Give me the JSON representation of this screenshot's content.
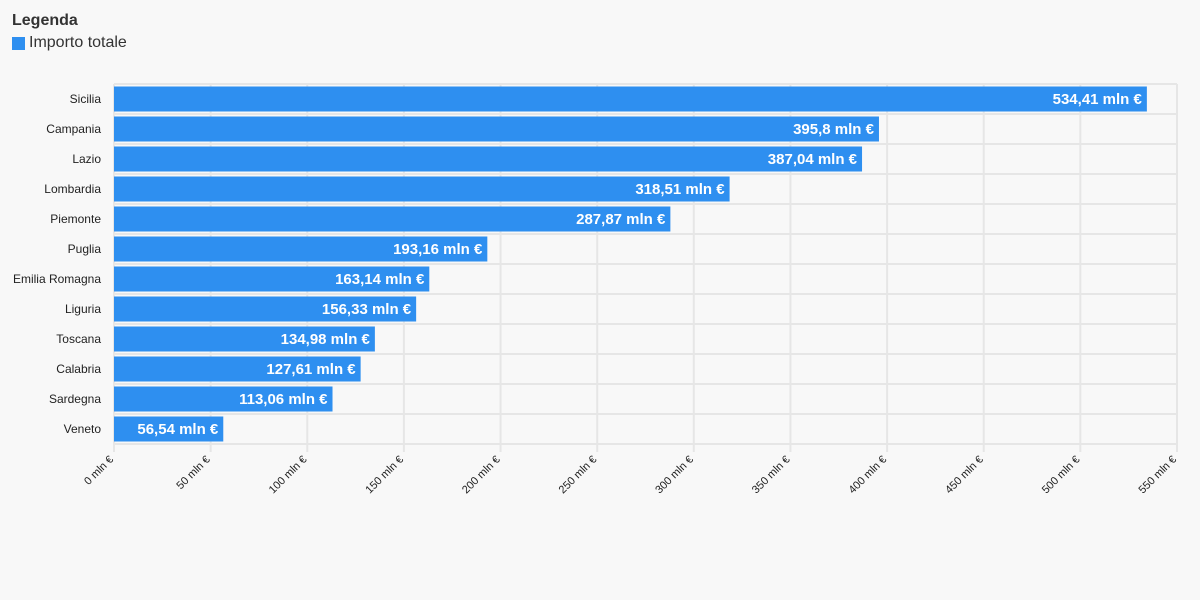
{
  "legend": {
    "title": "Legenda",
    "items": [
      {
        "label": "Importo totale",
        "color": "#2e8ff0"
      }
    ]
  },
  "chart_data": {
    "type": "bar",
    "orientation": "horizontal",
    "title": "",
    "xlabel": "",
    "ylabel": "",
    "categories": [
      "Sicilia",
      "Campania",
      "Lazio",
      "Lombardia",
      "Piemonte",
      "Puglia",
      "Emilia Romagna",
      "Liguria",
      "Toscana",
      "Calabria",
      "Sardegna",
      "Veneto"
    ],
    "series": [
      {
        "name": "Importo totale",
        "color": "#2e8ff0",
        "values": [
          534.41,
          395.8,
          387.04,
          318.51,
          287.87,
          193.16,
          163.14,
          156.33,
          134.98,
          127.61,
          113.06,
          56.54
        ],
        "labels": [
          "534,41 mln €",
          "395,8 mln €",
          "387,04 mln €",
          "318,51 mln €",
          "287,87 mln €",
          "193,16 mln €",
          "163,14 mln €",
          "156,33 mln €",
          "134,98 mln €",
          "127,61 mln €",
          "113,06 mln €",
          "56,54 mln €"
        ]
      }
    ],
    "xlim": [
      0,
      550
    ],
    "x_ticks": [
      0,
      50,
      100,
      150,
      200,
      250,
      300,
      350,
      400,
      450,
      500,
      550
    ],
    "x_tick_labels": [
      "0 mln €",
      "50 mln €",
      "100 mln €",
      "150 mln €",
      "200 mln €",
      "250 mln €",
      "300 mln €",
      "350 mln €",
      "400 mln €",
      "450 mln €",
      "500 mln €",
      "550 mln €"
    ],
    "grid": true,
    "legend_position": "top-left"
  }
}
